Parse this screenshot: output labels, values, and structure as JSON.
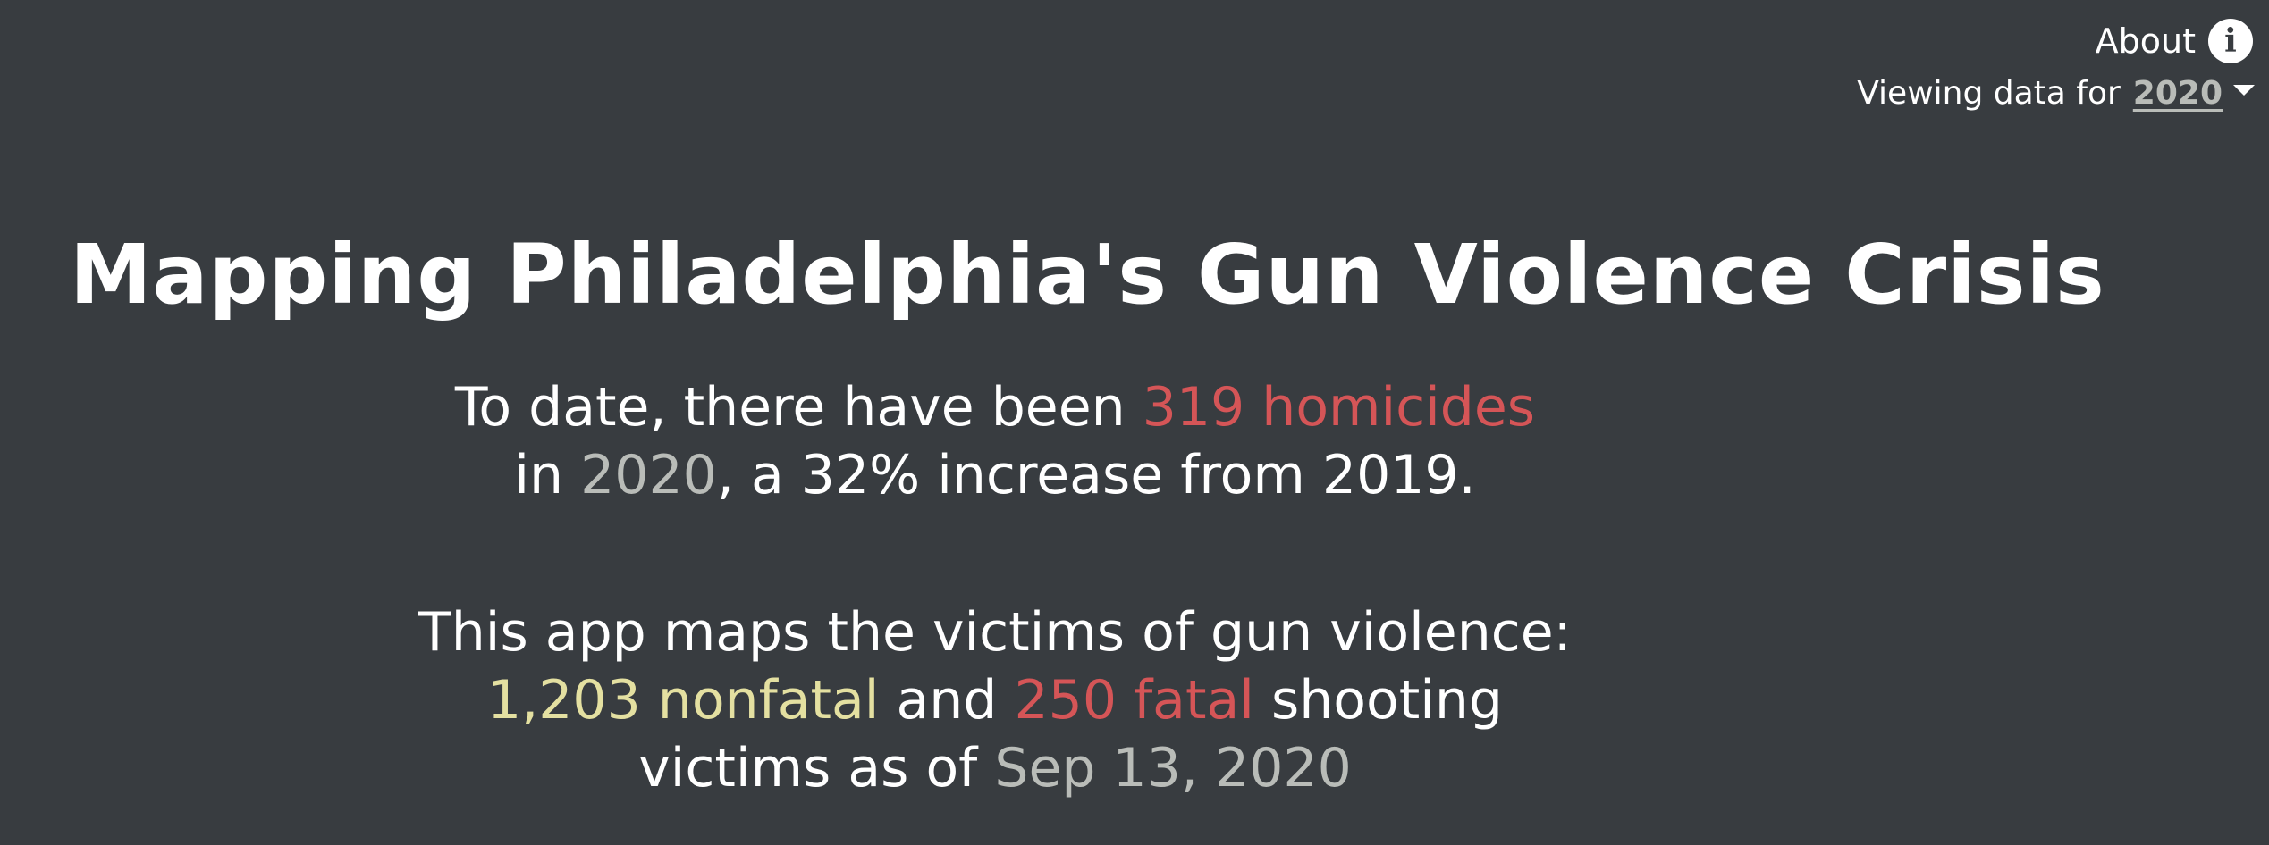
{
  "header": {
    "about_label": "About",
    "info_icon": "i",
    "viewing_label": "Viewing data for",
    "selected_year": "2020"
  },
  "page": {
    "title": "Mapping Philadelphia's Gun Violence Crisis"
  },
  "summary": {
    "homicides_prefix": "To date, there have been ",
    "homicides_count": "319 homicides",
    "in_word": "in ",
    "year": "2020",
    "increase_text": ", a 32% increase from 2019."
  },
  "victims": {
    "intro": "This app maps the victims of gun violence:",
    "nonfatal": "1,203 nonfatal",
    "and_word": " and ",
    "fatal": "250 fatal",
    "shooting_word": " shooting",
    "as_of_prefix": "victims as of ",
    "as_of_date": "Sep 13, 2020"
  },
  "colors": {
    "background": "#383c40",
    "fatal_red": "#d55557",
    "nonfatal_yellow": "#e4e0a1",
    "muted_grey": "#b9bcb8"
  }
}
